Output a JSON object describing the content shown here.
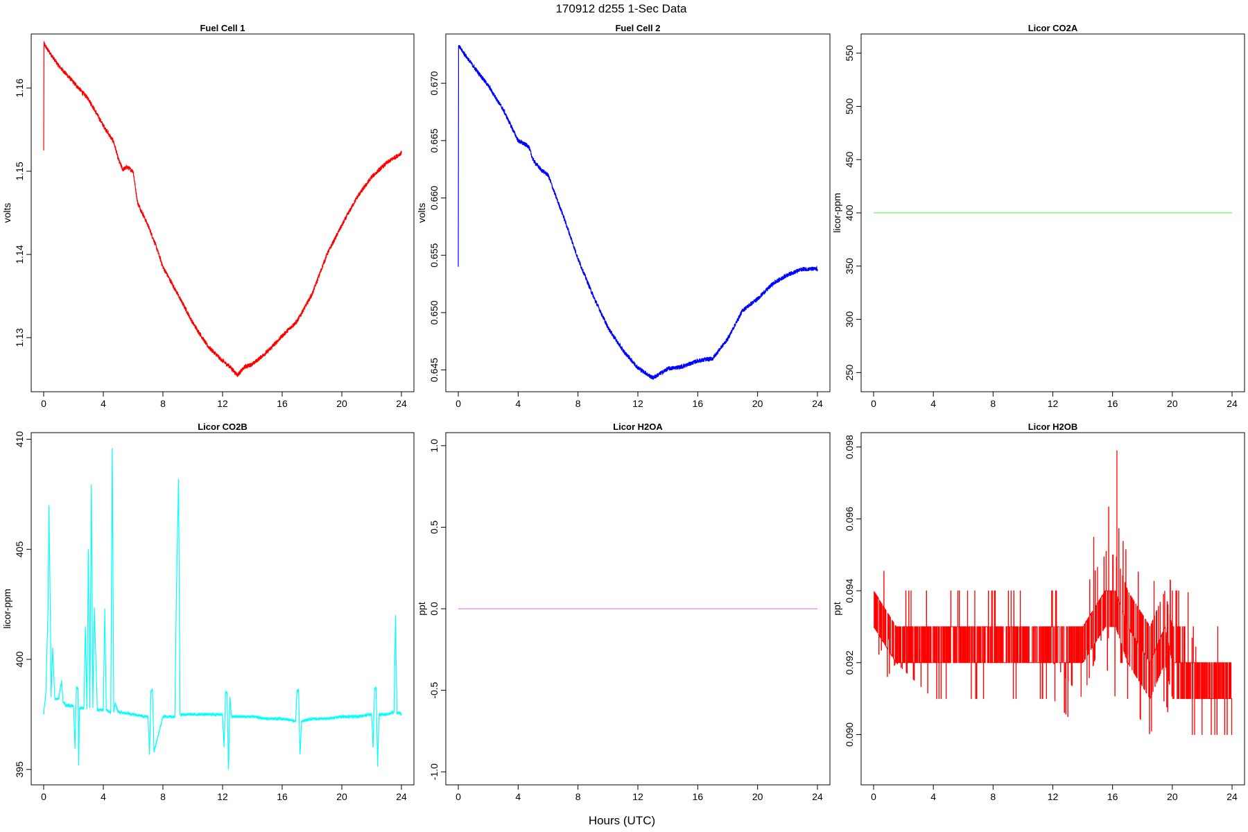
{
  "figure": {
    "title": "170912   d255   1-Sec Data",
    "xlabel": "Hours (UTC)"
  },
  "chart_data": [
    {
      "type": "line",
      "title": "Fuel Cell 1",
      "ylabel": "volts",
      "color": "#ff0000",
      "xlim": [
        0,
        24
      ],
      "ylim": [
        1.1235,
        1.1665
      ],
      "xticks": [
        "0",
        "4",
        "8",
        "12",
        "16",
        "20",
        "24"
      ],
      "yticks": [
        "1.13",
        "1.14",
        "1.15",
        "1.16"
      ],
      "series": [
        {
          "x": [
            0,
            0.02,
            0.05,
            0.5,
            1,
            2,
            3,
            4,
            4.7,
            5,
            5.3,
            5.6,
            6,
            6.3,
            7,
            7.5,
            8,
            9,
            10,
            11,
            12,
            12.5,
            13,
            13.5,
            14,
            15,
            16,
            17,
            18,
            19,
            20,
            21,
            22,
            23,
            24
          ],
          "y": [
            1.1525,
            1.1655,
            1.1652,
            1.164,
            1.1627,
            1.1607,
            1.1587,
            1.1555,
            1.1535,
            1.1515,
            1.1502,
            1.1505,
            1.15,
            1.1462,
            1.1435,
            1.1412,
            1.1385,
            1.1352,
            1.1318,
            1.129,
            1.1272,
            1.1265,
            1.1255,
            1.1265,
            1.1268,
            1.1283,
            1.1302,
            1.132,
            1.1352,
            1.14,
            1.1435,
            1.1468,
            1.1493,
            1.151,
            1.1522
          ]
        }
      ]
    },
    {
      "type": "line",
      "title": "Fuel Cell 2",
      "ylabel": "volts",
      "color": "#0000ff",
      "xlim": [
        0,
        24
      ],
      "ylim": [
        0.6431,
        0.6743
      ],
      "xticks": [
        "0",
        "4",
        "8",
        "12",
        "16",
        "20",
        "24"
      ],
      "yticks": [
        "0.645",
        "0.650",
        "0.655",
        "0.660",
        "0.665",
        "0.670"
      ],
      "series": [
        {
          "x": [
            0,
            0.02,
            0.05,
            1,
            2,
            3,
            4,
            4.7,
            5,
            5.5,
            6,
            6.5,
            7,
            8,
            9,
            10,
            11,
            12,
            13,
            14,
            15,
            16,
            17,
            18,
            19,
            20,
            21,
            22,
            23,
            24
          ],
          "y": [
            0.654,
            0.6733,
            0.6732,
            0.6715,
            0.6698,
            0.6677,
            0.665,
            0.6645,
            0.6633,
            0.6625,
            0.662,
            0.6602,
            0.6585,
            0.6547,
            0.6515,
            0.6487,
            0.6467,
            0.6452,
            0.6443,
            0.6451,
            0.6453,
            0.6458,
            0.646,
            0.6477,
            0.6502,
            0.6512,
            0.6525,
            0.6533,
            0.6538,
            0.6538
          ]
        }
      ]
    },
    {
      "type": "line",
      "title": "Licor CO2A",
      "ylabel": "licor-ppm",
      "color": "#66ff66",
      "xlim": [
        0,
        24
      ],
      "ylim": [
        232,
        568
      ],
      "xticks": [
        "0",
        "4",
        "8",
        "12",
        "16",
        "20",
        "24"
      ],
      "yticks": [
        "250",
        "300",
        "350",
        "400",
        "450",
        "500",
        "550"
      ],
      "series": [
        {
          "x": [
            0,
            24
          ],
          "y": [
            400,
            400
          ]
        }
      ]
    },
    {
      "type": "line",
      "title": "Licor CO2B",
      "ylabel": "licor-ppm",
      "color": "#00ffff",
      "xlim": [
        0,
        24
      ],
      "ylim": [
        394.3,
        410.3
      ],
      "xticks": [
        "0",
        "4",
        "8",
        "12",
        "16",
        "20",
        "24"
      ],
      "yticks": [
        "395",
        "400",
        "405",
        "410"
      ],
      "series": [
        {
          "x": [
            0,
            0.15,
            0.3,
            0.35,
            0.45,
            0.5,
            0.6,
            0.75,
            1,
            1.2,
            1.3,
            1.4,
            1.5,
            2,
            2.1,
            2.2,
            2.3,
            2.35,
            2.4,
            2.5,
            2.7,
            2.8,
            2.9,
            3,
            3.1,
            3.2,
            3.3,
            3.4,
            3.6,
            4,
            4.1,
            4.2,
            4.5,
            4.6,
            4.7,
            4.8,
            5,
            6,
            7,
            7.1,
            7.2,
            7.3,
            7.4,
            8,
            8.8,
            8.9,
            9.05,
            9.15,
            9.3,
            10,
            11,
            12,
            12.1,
            12.2,
            12.3,
            12.4,
            12.5,
            12.6,
            13,
            14,
            15,
            16,
            16.9,
            17,
            17.1,
            17.2,
            17.3,
            18,
            19,
            20,
            21,
            22,
            22.1,
            22.2,
            22.3,
            22.4,
            22.5,
            23,
            23.5,
            23.6,
            23.7,
            23.8,
            24
          ],
          "y": [
            397.5,
            398.5,
            402.5,
            407,
            402,
            398.3,
            400.5,
            398.2,
            398.2,
            399,
            398.1,
            398,
            397.9,
            397.9,
            396,
            398.7,
            398.7,
            395.2,
            397.8,
            397.8,
            397.8,
            401.5,
            397.8,
            405,
            397.8,
            407.9,
            397.8,
            402.3,
            397.7,
            397.7,
            402.3,
            397.7,
            397.6,
            409.6,
            397.6,
            398,
            397.6,
            397.5,
            397.4,
            395.7,
            398.6,
            398.6,
            395.8,
            397.4,
            397.4,
            402.9,
            408.2,
            397.5,
            397.5,
            397.5,
            397.5,
            397.5,
            396,
            398.5,
            398.5,
            395,
            398.3,
            397.4,
            397.4,
            397.4,
            397.3,
            397.3,
            397.2,
            398.6,
            398.6,
            395.7,
            397.2,
            397.3,
            397.3,
            397.4,
            397.4,
            397.5,
            396,
            398.7,
            398.7,
            395.2,
            397.5,
            397.5,
            397.6,
            402,
            397.5,
            397.6,
            397.5
          ]
        }
      ]
    },
    {
      "type": "line",
      "title": "Licor H2OA",
      "ylabel": "ppt",
      "color": "#dd88dd",
      "xlim": [
        0,
        24
      ],
      "ylim": [
        -1.08,
        1.08
      ],
      "xticks": [
        "0",
        "4",
        "8",
        "12",
        "16",
        "20",
        "24"
      ],
      "yticks": [
        "-1.0",
        "-0.5",
        "0.0",
        "0.5",
        "1.0"
      ],
      "series": [
        {
          "x": [
            0,
            24
          ],
          "y": [
            0,
            0
          ]
        }
      ]
    },
    {
      "type": "line",
      "title": "Licor H2OB",
      "ylabel": "ppt",
      "color": "#ff0000",
      "xlim": [
        0,
        24
      ],
      "ylim": [
        0.0886,
        0.0984
      ],
      "xticks": [
        "0",
        "4",
        "8",
        "12",
        "16",
        "20",
        "24"
      ],
      "yticks": [
        "0.090",
        "0.092",
        "0.094",
        "0.096",
        "0.098"
      ],
      "series": [
        {
          "x": [
            0,
            1.5,
            4,
            8,
            12,
            14,
            15.5,
            16.2,
            17,
            18.5,
            19.5,
            20,
            21,
            22,
            24
          ],
          "low": [
            0.091,
            0.092,
            0.091,
            0.091,
            0.091,
            0.09,
            0.092,
            0.091,
            0.091,
            0.09,
            0.091,
            0.09,
            0.09,
            0.09,
            0.09
          ],
          "high": [
            0.095,
            0.094,
            0.094,
            0.094,
            0.094,
            0.094,
            0.097,
            0.098,
            0.095,
            0.094,
            0.095,
            0.094,
            0.094,
            0.093,
            0.093
          ],
          "band_low": [
            0.093,
            0.092,
            0.092,
            0.092,
            0.092,
            0.092,
            0.093,
            0.093,
            0.092,
            0.091,
            0.092,
            0.091,
            0.091,
            0.091,
            0.091
          ],
          "band_high": [
            0.094,
            0.093,
            0.093,
            0.093,
            0.093,
            0.093,
            0.094,
            0.095,
            0.094,
            0.093,
            0.094,
            0.093,
            0.093,
            0.092,
            0.092
          ]
        }
      ]
    }
  ]
}
